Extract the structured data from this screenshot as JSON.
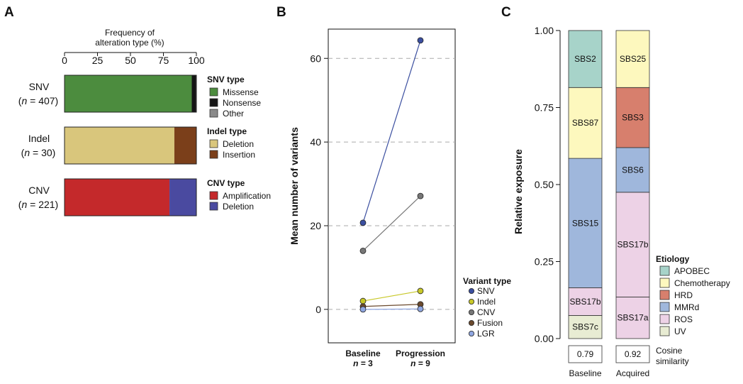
{
  "colors": {
    "missense": "#4c8c3e",
    "nonsense": "#151515",
    "other": "#8a8a8a",
    "deletion_indel": "#d9c67c",
    "insertion": "#7b3f1a",
    "amplification": "#c4292b",
    "deletion_cnv": "#4a4aa0",
    "snv": "#3b4fa0",
    "indel": "#c8c829",
    "cnv": "#777777",
    "fusion": "#6b4a2e",
    "lgr": "#8fa6e0",
    "apobec": "#a7d3c9",
    "chemotherapy": "#fdf8be",
    "hrd": "#d77f6d",
    "mmrd": "#9fb7dc",
    "ros": "#edd2e6",
    "uv": "#e8ecd3"
  },
  "panel_a": {
    "letter": "A",
    "axis_title_line1": "Frequency of",
    "axis_title_line2": "alteration type (%)",
    "ticks": [
      "0",
      "25",
      "50",
      "75",
      "100"
    ],
    "rows": [
      {
        "label": "SNV",
        "n_text": "= 407",
        "legend_title": "SNV type",
        "segments": [
          {
            "name": "Missense",
            "value": 96.5,
            "color_key": "missense"
          },
          {
            "name": "Nonsense",
            "value": 3.2,
            "color_key": "nonsense"
          },
          {
            "name": "Other",
            "value": 0.3,
            "color_key": "other"
          }
        ]
      },
      {
        "label": "Indel",
        "n_text": "= 30",
        "legend_title": "Indel type",
        "segments": [
          {
            "name": "Deletion",
            "value": 83.3,
            "color_key": "deletion_indel"
          },
          {
            "name": "Insertion",
            "value": 16.7,
            "color_key": "insertion"
          }
        ]
      },
      {
        "label": "CNV",
        "n_text": "= 221",
        "legend_title": "CNV type",
        "segments": [
          {
            "name": "Amplification",
            "value": 79.6,
            "color_key": "amplification"
          },
          {
            "name": "Deletion",
            "value": 20.4,
            "color_key": "deletion_cnv"
          }
        ]
      }
    ]
  },
  "panel_b": {
    "letter": "B",
    "ylabel": "Mean number of variants",
    "yticks": [
      "0",
      "20",
      "40",
      "60"
    ],
    "x_labels": [
      "Baseline",
      "Progression"
    ],
    "x_n": [
      "= 3",
      "= 9"
    ],
    "legend_title": "Variant type"
  },
  "panel_c": {
    "letter": "C",
    "ylabel": "Relative exposure",
    "yticks": [
      "0.00",
      "0.25",
      "0.50",
      "0.75",
      "1.00"
    ],
    "cosine_label_line1": "Cosine",
    "cosine_label_line2": "similarity",
    "legend_title": "Etiology",
    "legend": [
      {
        "name": "APOBEC",
        "color_key": "apobec"
      },
      {
        "name": "Chemotherapy",
        "color_key": "chemotherapy"
      },
      {
        "name": "HRD",
        "color_key": "hrd"
      },
      {
        "name": "MMRd",
        "color_key": "mmrd"
      },
      {
        "name": "ROS",
        "color_key": "ros"
      },
      {
        "name": "UV",
        "color_key": "uv"
      }
    ]
  },
  "chart_data": [
    {
      "type": "bar",
      "orientation": "horizontal",
      "stacked": true,
      "title": "Frequency of alteration type (%)",
      "categories": [
        "SNV (n = 407)",
        "Indel (n = 30)",
        "CNV (n = 221)"
      ],
      "xlim": [
        0,
        100
      ],
      "series": [
        {
          "name": "SNV: Missense",
          "values": [
            96.5,
            null,
            null
          ]
        },
        {
          "name": "SNV: Nonsense",
          "values": [
            3.2,
            null,
            null
          ]
        },
        {
          "name": "SNV: Other",
          "values": [
            0.3,
            null,
            null
          ]
        },
        {
          "name": "Indel: Deletion",
          "values": [
            null,
            83.3,
            null
          ]
        },
        {
          "name": "Indel: Insertion",
          "values": [
            null,
            16.7,
            null
          ]
        },
        {
          "name": "CNV: Amplification",
          "values": [
            null,
            null,
            79.6
          ]
        },
        {
          "name": "CNV: Deletion",
          "values": [
            null,
            null,
            20.4
          ]
        }
      ]
    },
    {
      "type": "line",
      "xlabel": "",
      "ylabel": "Mean number of variants",
      "x": [
        "Baseline",
        "Progression"
      ],
      "ylim": [
        -8,
        67
      ],
      "series": [
        {
          "name": "SNV",
          "color_key": "snv",
          "values": [
            20.7,
            64.3
          ]
        },
        {
          "name": "Indel",
          "color_key": "indel",
          "values": [
            2.0,
            4.4
          ]
        },
        {
          "name": "CNV",
          "color_key": "cnv",
          "values": [
            14.0,
            27.1
          ]
        },
        {
          "name": "Fusion",
          "color_key": "fusion",
          "values": [
            0.7,
            1.2
          ]
        },
        {
          "name": "LGR",
          "color_key": "lgr",
          "values": [
            0.0,
            0.1
          ]
        }
      ]
    },
    {
      "type": "bar",
      "stacked": true,
      "ylabel": "Relative exposure",
      "ylim": [
        0,
        1
      ],
      "categories": [
        "Baseline",
        "Acquired"
      ],
      "cosine_similarity": [
        "0.79",
        "0.92"
      ],
      "stacks": [
        {
          "category": "Baseline",
          "segments": [
            {
              "name": "SBS7c",
              "value": 0.075,
              "color_key": "uv"
            },
            {
              "name": "SBS17b",
              "value": 0.09,
              "color_key": "ros"
            },
            {
              "name": "SBS15",
              "value": 0.42,
              "color_key": "mmrd"
            },
            {
              "name": "SBS87",
              "value": 0.23,
              "color_key": "chemotherapy"
            },
            {
              "name": "SBS2",
              "value": 0.185,
              "color_key": "apobec"
            }
          ]
        },
        {
          "category": "Acquired",
          "segments": [
            {
              "name": "SBS17a",
              "value": 0.135,
              "color_key": "ros"
            },
            {
              "name": "SBS17b",
              "value": 0.34,
              "color_key": "ros"
            },
            {
              "name": "SBS6",
              "value": 0.145,
              "color_key": "mmrd"
            },
            {
              "name": "SBS3",
              "value": 0.195,
              "color_key": "hrd"
            },
            {
              "name": "SBS25",
              "value": 0.185,
              "color_key": "chemotherapy"
            }
          ]
        }
      ]
    }
  ]
}
